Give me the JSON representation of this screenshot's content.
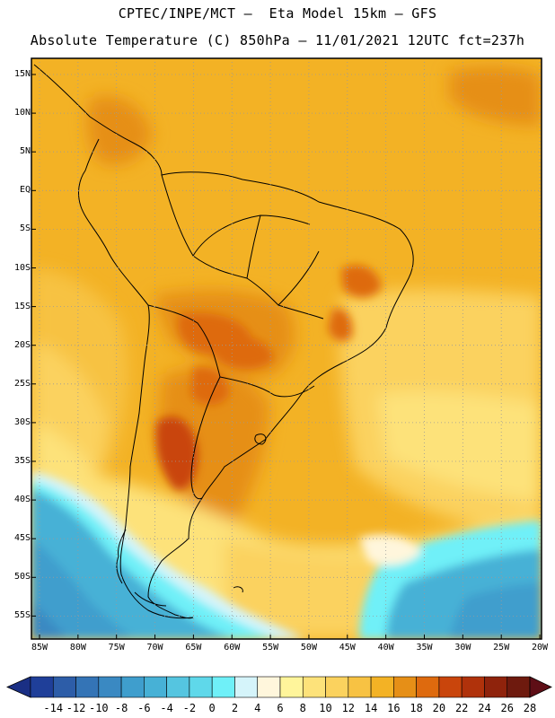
{
  "header": {
    "line1": "CPTEC/INPE/MCT –  Eta Model 15km – GFS",
    "line2": "Absolute Temperature (C) 850hPa – 11/01/2021 12UTC fct=237h"
  },
  "map": {
    "lat_labels": [
      "15N",
      "10N",
      "5N",
      "EQ",
      "5S",
      "10S",
      "15S",
      "20S",
      "25S",
      "30S",
      "35S",
      "40S",
      "45S",
      "50S",
      "55S"
    ],
    "lon_labels": [
      "85W",
      "80W",
      "75W",
      "70W",
      "65W",
      "60W",
      "55W",
      "50W",
      "45W",
      "40W",
      "35W",
      "30W",
      "25W",
      "20W"
    ]
  },
  "legend": {
    "labels": [
      "-14",
      "-12",
      "-10",
      "-8",
      "-6",
      "-4",
      "-2",
      "0",
      "2",
      "4",
      "6",
      "8",
      "10",
      "12",
      "14",
      "16",
      "18",
      "20",
      "22",
      "24",
      "26",
      "28"
    ],
    "colors": [
      "#1f3f99",
      "#2d5da8",
      "#3474b6",
      "#3a89c2",
      "#3f9ecd",
      "#47b1d6",
      "#55c5e0",
      "#5fd8ea",
      "#6ff0f8",
      "#d5f4fa",
      "#fff6dc",
      "#fff59b",
      "#fde27a",
      "#fbd25e",
      "#f7c243",
      "#f3b225",
      "#e68f17",
      "#de6a0e",
      "#c9450c",
      "#b0320b",
      "#8f230c",
      "#6e1a0e"
    ]
  }
}
